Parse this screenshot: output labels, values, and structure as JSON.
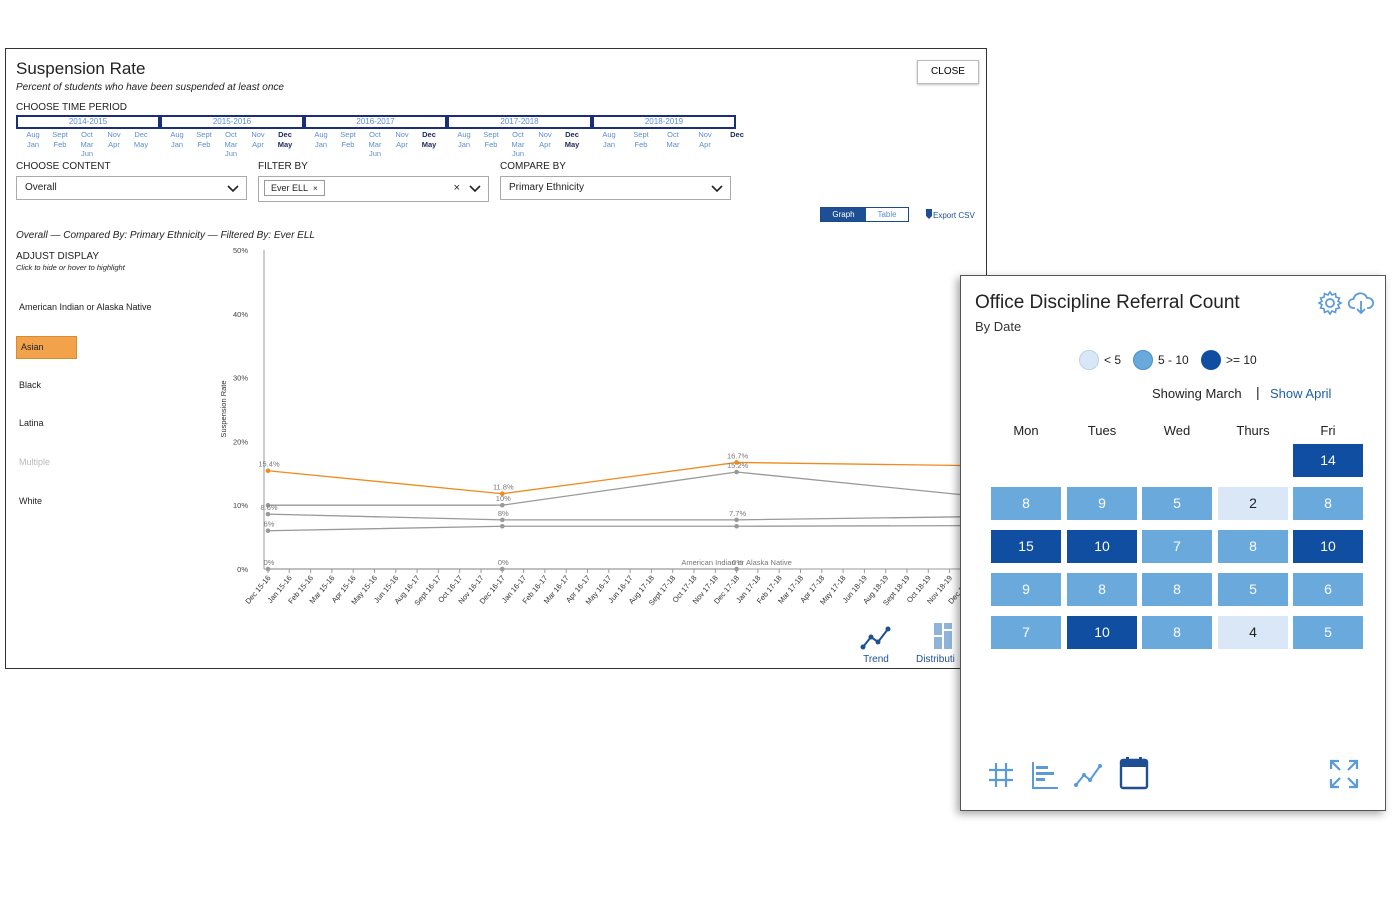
{
  "main": {
    "title": "Suspension Rate",
    "subtitle": "Percent of students who have been suspended at least once",
    "close_label": "CLOSE",
    "time_period_label": "CHOOSE TIME PERIOD",
    "periods": [
      {
        "label": "2014-2015",
        "months": [
          [
            "Aug",
            "Jan"
          ],
          [
            "Sept",
            "Feb"
          ],
          [
            "Oct",
            "Mar",
            "Jun"
          ],
          [
            "Nov",
            "Apr"
          ],
          [
            "Dec",
            "May"
          ]
        ],
        "bold": []
      },
      {
        "label": "2015-2016",
        "months": [
          [
            "Aug",
            "Jan"
          ],
          [
            "Sept",
            "Feb"
          ],
          [
            "Oct",
            "Mar",
            "Jun"
          ],
          [
            "Nov",
            "Apr"
          ],
          [
            "Dec",
            "May"
          ]
        ],
        "bold": [
          4
        ]
      },
      {
        "label": "2016-2017",
        "months": [
          [
            "Aug",
            "Jan"
          ],
          [
            "Sept",
            "Feb"
          ],
          [
            "Oct",
            "Mar",
            "Jun"
          ],
          [
            "Nov",
            "Apr"
          ],
          [
            "Dec",
            "May"
          ]
        ],
        "bold": [
          4
        ]
      },
      {
        "label": "2017-2018",
        "months": [
          [
            "Aug",
            "Jan"
          ],
          [
            "Sept",
            "Feb"
          ],
          [
            "Oct",
            "Mar",
            "Jun"
          ],
          [
            "Nov",
            "Apr"
          ],
          [
            "Dec",
            "May"
          ]
        ],
        "bold": [
          4
        ]
      },
      {
        "label": "2018-2019",
        "months": [
          [
            "Aug",
            "Jan"
          ],
          [
            "Sept",
            "Feb"
          ],
          [
            "Oct",
            "Mar"
          ],
          [
            "Nov",
            "Apr"
          ],
          [
            "Dec"
          ]
        ],
        "bold": [
          4
        ]
      }
    ],
    "content_label": "CHOOSE CONTENT",
    "content_value": "Overall",
    "filter_label": "FILTER BY",
    "filter_chip": "Ever ELL",
    "filter_chip_x": "×",
    "filter_clear": "×",
    "compare_label": "COMPARE BY",
    "compare_value": "Primary Ethnicity",
    "toggle_graph": "Graph",
    "toggle_table": "Table",
    "export_label": "Export CSV",
    "chart_caption": "Overall — Compared By: Primary Ethnicity — Filtered By: Ever ELL",
    "adjust_label": "ADJUST DISPLAY",
    "adjust_hint": "Click to hide or hover to highlight",
    "legend": [
      {
        "label": "American Indian or Alaska Native",
        "state": "normal"
      },
      {
        "label": "Asian",
        "state": "selected"
      },
      {
        "label": "Black",
        "state": "normal"
      },
      {
        "label": "Latina",
        "state": "normal"
      },
      {
        "label": "Multiple",
        "state": "muted"
      },
      {
        "label": "White",
        "state": "normal"
      }
    ],
    "trend_label": "Trend",
    "distribution_label": "Distributi",
    "highlight_color": "#f2a24a",
    "accent_color": "#1e4f94"
  },
  "chart_data": {
    "type": "line",
    "ylabel": "Suspension Rate",
    "y_ticks": [
      "0%",
      "10%",
      "20%",
      "30%",
      "40%",
      "50%"
    ],
    "ylim": [
      0,
      50
    ],
    "categories": [
      "Dec 15-16",
      "Jan 15-16",
      "Feb 15-16",
      "Mar 15-16",
      "Apr 15-16",
      "May 15-16",
      "Jun 15-16",
      "Aug 16-17",
      "Sept 16-17",
      "Oct 16-17",
      "Nov 16-17",
      "Dec 16-17",
      "Jan 16-17",
      "Feb 16-17",
      "Mar 16-17",
      "Apr 16-17",
      "May 16-17",
      "Jun 16-17",
      "Aug 17-18",
      "Sept 17-18",
      "Oct 17-18",
      "Nov 17-18",
      "Dec 17-18",
      "Jan 17-18",
      "Feb 17-18",
      "Mar 17-18",
      "Apr 17-18",
      "May 17-18",
      "Jun 18-19",
      "Aug 18-19",
      "Sept 18-19",
      "Oct 18-19",
      "Nov 18-19",
      "Dec 18-19"
    ],
    "series": [
      {
        "name": "Asian",
        "color": "#f08a1c",
        "points": [
          [
            0,
            15.4
          ],
          [
            11,
            11.8
          ],
          [
            22,
            16.7
          ],
          [
            33,
            16.2
          ]
        ],
        "labels": [
          "15.4%",
          "11.8%",
          "16.7%",
          ""
        ]
      },
      {
        "name": "Black",
        "color": "#999999",
        "points": [
          [
            0,
            10
          ],
          [
            11,
            10
          ],
          [
            22,
            15.2
          ],
          [
            33,
            11.5
          ]
        ],
        "labels": [
          "",
          "10%",
          "15.2%",
          ""
        ]
      },
      {
        "name": "Latina",
        "color": "#999999",
        "points": [
          [
            0,
            8.6
          ],
          [
            11,
            7.7
          ],
          [
            22,
            7.7
          ],
          [
            33,
            8.2
          ]
        ],
        "labels": [
          "8.6%",
          "8%",
          "7.7%",
          ""
        ]
      },
      {
        "name": "White",
        "color": "#999999",
        "points": [
          [
            0,
            6
          ],
          [
            11,
            6.7
          ],
          [
            22,
            6.7
          ],
          [
            33,
            6.8
          ]
        ],
        "labels": [
          "6%",
          "",
          "",
          ""
        ]
      },
      {
        "name": "American Indian or Alaska Native",
        "color": "#999999",
        "points": [
          [
            0,
            0
          ],
          [
            11,
            0
          ],
          [
            22,
            0
          ]
        ],
        "labels": [
          "0%",
          "0%",
          "0%"
        ]
      }
    ],
    "annotation": "American Indian or Alaska Native"
  },
  "card": {
    "title": "Office Discipline Referral Count",
    "subtitle": "By Date",
    "legend": [
      {
        "label": "< 5",
        "color": "#d9e7f6"
      },
      {
        "label": "5 - 10",
        "color": "#6aa9dc"
      },
      {
        "label": ">= 10",
        "color": "#0f4ea1"
      }
    ],
    "showing": "Showing March",
    "separator": "|",
    "show_april": "Show April",
    "days": [
      "Mon",
      "Tues",
      "Wed",
      "Thurs",
      "Fri"
    ],
    "weeks": [
      [
        null,
        null,
        null,
        null,
        14
      ],
      [
        8,
        9,
        5,
        2,
        8
      ],
      [
        15,
        10,
        7,
        8,
        10
      ],
      [
        9,
        8,
        8,
        5,
        6
      ],
      [
        7,
        10,
        8,
        4,
        5
      ]
    ]
  }
}
